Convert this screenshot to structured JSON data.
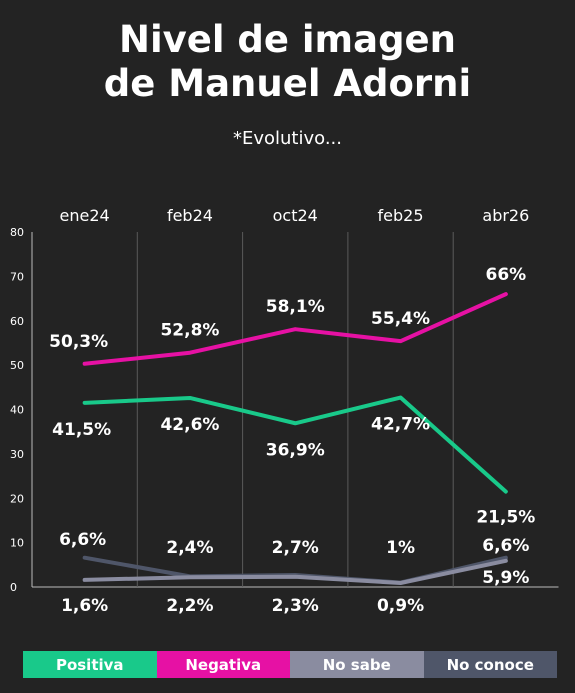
{
  "title_line1": "Nivel de imagen",
  "title_line2": "de  Manuel Adorni",
  "subtitle": "*Evolutivo...",
  "colors": {
    "background": "#232323",
    "positiva": "#19c98a",
    "negativa": "#e611a4",
    "no_sabe": "#8a8ca0",
    "no_conoce": "#4f5669",
    "grid": "#5a5a5a"
  },
  "chart_data": {
    "type": "line",
    "categories": [
      "ene24",
      "feb24",
      "oct24",
      "feb25",
      "abr26"
    ],
    "ylim": [
      0,
      80
    ],
    "yticks": [
      "0",
      "10",
      "20",
      "30",
      "40",
      "50",
      "60",
      "70",
      "80"
    ],
    "series": [
      {
        "name": "Positiva",
        "values": [
          41.5,
          42.6,
          36.9,
          42.7,
          21.5
        ],
        "labels": [
          "41,5%",
          "42,6%",
          "36,9%",
          "42,7%",
          "21,5%"
        ]
      },
      {
        "name": "Negativa",
        "values": [
          50.3,
          52.8,
          58.1,
          55.4,
          66
        ],
        "labels": [
          "50,3%",
          "52,8%",
          "58,1%",
          "55,4%",
          "66%"
        ]
      },
      {
        "name": "No sabe",
        "values": [
          1.6,
          2.2,
          2.3,
          0.9,
          5.9
        ],
        "labels": [
          "1,6%",
          "2,2%",
          "2,3%",
          "0,9%",
          "5,9%"
        ]
      },
      {
        "name": "No conoce",
        "values": [
          6.6,
          2.4,
          2.7,
          1,
          6.6
        ],
        "labels": [
          "6,6%",
          "2,4%",
          "2,7%",
          "1%",
          "6,6%"
        ]
      }
    ],
    "legend_position": "bottom"
  }
}
